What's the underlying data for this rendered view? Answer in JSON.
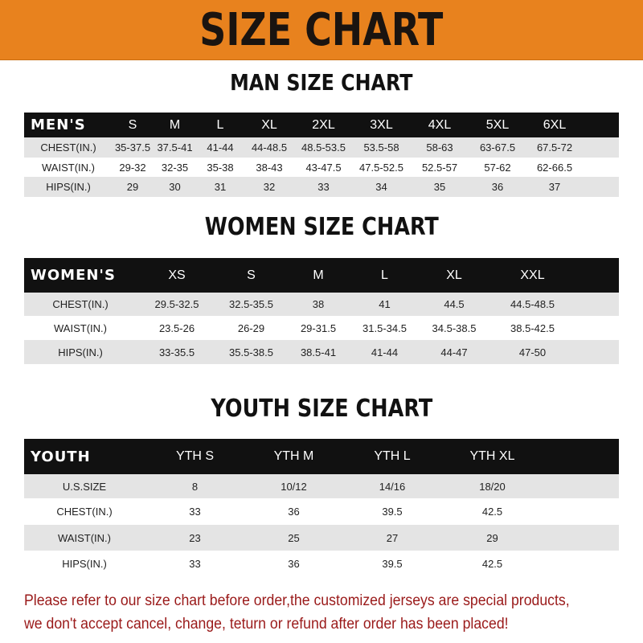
{
  "banner_title": "SIZE CHART",
  "men": {
    "title": "MAN SIZE CHART",
    "header": [
      "MEN'S",
      "S",
      "M",
      "L",
      "XL",
      "2XL",
      "3XL",
      "4XL",
      "5XL",
      "6XL"
    ],
    "rows": [
      [
        "CHEST(IN.)",
        "35-37.5",
        "37.5-41",
        "41-44",
        "44-48.5",
        "48.5-53.5",
        "53.5-58",
        "58-63",
        "63-67.5",
        "67.5-72"
      ],
      [
        "WAIST(IN.)",
        "29-32",
        "32-35",
        "35-38",
        "38-43",
        "43-47.5",
        "47.5-52.5",
        "52.5-57",
        "57-62",
        "62-66.5"
      ],
      [
        "HIPS(IN.)",
        "29",
        "30",
        "31",
        "32",
        "33",
        "34",
        "35",
        "36",
        "37"
      ]
    ]
  },
  "women": {
    "title": "WOMEN SIZE CHART",
    "header": [
      "WOMEN'S",
      "XS",
      "S",
      "M",
      "L",
      "XL",
      "XXL"
    ],
    "rows": [
      [
        "CHEST(IN.)",
        "29.5-32.5",
        "32.5-35.5",
        "38",
        "41",
        "44.5",
        "44.5-48.5"
      ],
      [
        "WAIST(IN.)",
        "23.5-26",
        "26-29",
        "29-31.5",
        "31.5-34.5",
        "34.5-38.5",
        "38.5-42.5"
      ],
      [
        "HIPS(IN.)",
        "33-35.5",
        "35.5-38.5",
        "38.5-41",
        "41-44",
        "44-47",
        "47-50"
      ]
    ]
  },
  "youth": {
    "title": "YOUTH SIZE CHART",
    "header": [
      "YOUTH",
      "YTH S",
      "YTH M",
      "YTH L",
      "YTH XL"
    ],
    "rows": [
      [
        "U.S.SIZE",
        "8",
        "10/12",
        "14/16",
        "18/20"
      ],
      [
        "CHEST(IN.)",
        "33",
        "36",
        "39.5",
        "42.5"
      ],
      [
        "WAIST(IN.)",
        "23",
        "25",
        "27",
        "29"
      ],
      [
        "HIPS(IN.)",
        "33",
        "36",
        "39.5",
        "42.5"
      ]
    ]
  },
  "note": {
    "line1": "Please refer to our size chart before order,the customized jerseys are special products,",
    "line2": "we don't accept cancel, change, teturn or refund after order has been placed!"
  },
  "colors": {
    "banner": "#e8821e",
    "header_row": "#111111",
    "stripe": "#e4e4e4",
    "note": "#9a1a1a"
  }
}
